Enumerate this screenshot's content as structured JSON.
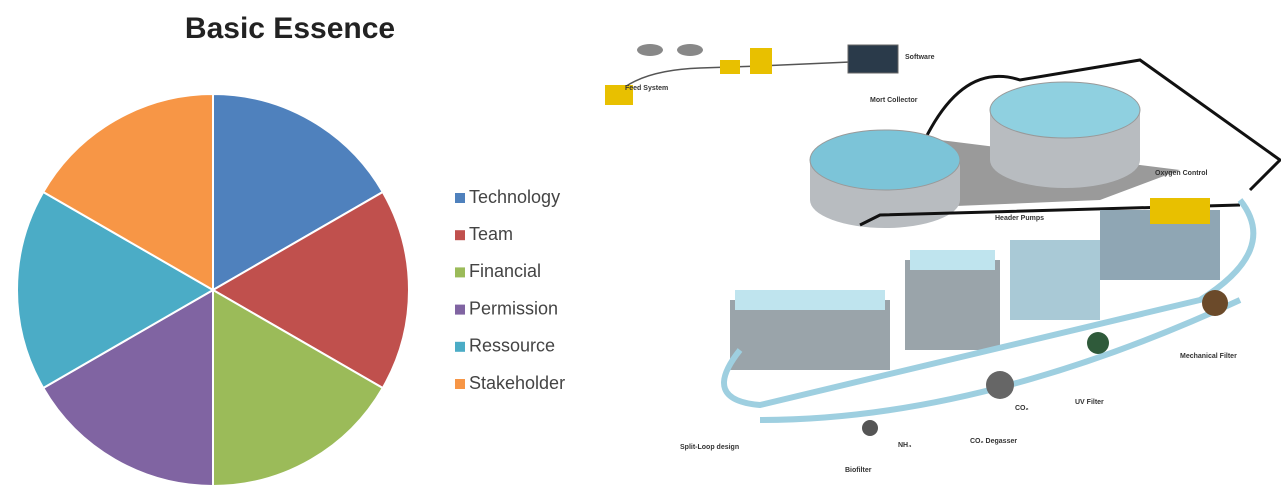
{
  "chart_data": {
    "type": "pie",
    "title": "Basic Essence",
    "categories": [
      "Technology",
      "Team",
      "Financial",
      "Permission",
      "Ressource",
      "Stakeholder"
    ],
    "values": [
      16.7,
      16.7,
      16.7,
      16.7,
      16.7,
      16.7
    ],
    "colors": [
      "#4f81bd",
      "#c0504d",
      "#9bbb59",
      "#8064a2",
      "#4bacc6",
      "#f79646"
    ],
    "legend": "right"
  },
  "diagram": {
    "labels": [
      "Feed System",
      "Software",
      "Mort Collector",
      "Oxygen Control",
      "Header Pumps",
      "Mechanical Filter",
      "UV Filter",
      "CO₂",
      "CO₂ Degasser",
      "NH₄",
      "Split-Loop design",
      "Biofilter"
    ]
  }
}
